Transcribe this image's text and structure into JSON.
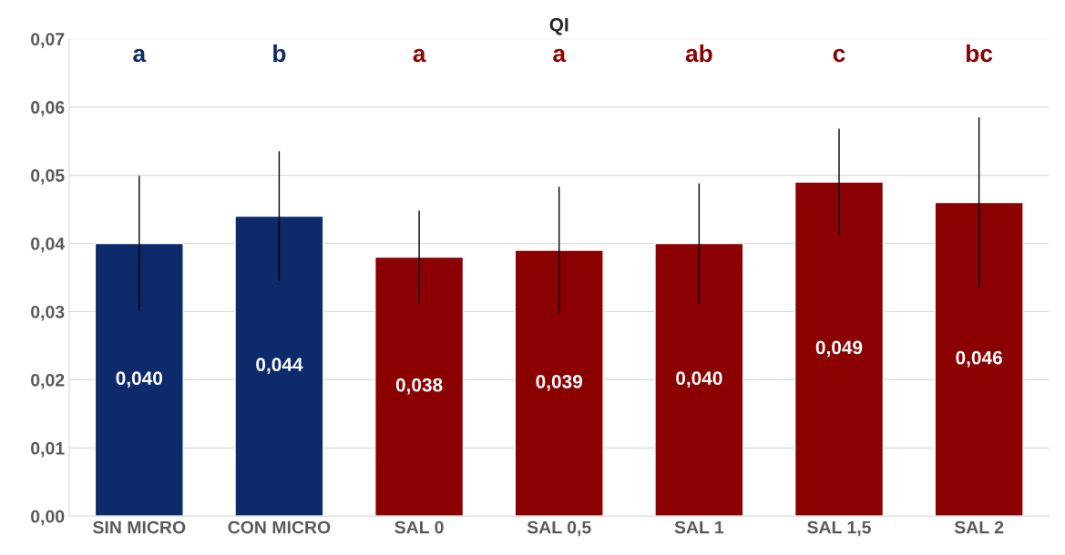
{
  "chart_data": {
    "type": "bar",
    "title": "QI",
    "categories": [
      "SIN MICRO",
      "CON MICRO",
      "SAL 0",
      "SAL 0,5",
      "SAL 1",
      "SAL 1,5",
      "SAL 2"
    ],
    "values": [
      0.04,
      0.044,
      0.038,
      0.039,
      0.04,
      0.049,
      0.046
    ],
    "errors": [
      0.0099,
      0.0095,
      0.0068,
      0.0093,
      0.0088,
      0.0078,
      0.0125
    ],
    "colors": [
      "#0d2a6b",
      "#0d2a6b",
      "#8b0000",
      "#8b0000",
      "#8b0000",
      "#8b0000",
      "#8b0000"
    ],
    "value_labels": [
      "0,040",
      "0,044",
      "0,038",
      "0,039",
      "0,040",
      "0,049",
      "0,046"
    ],
    "ylim": [
      0,
      0.07
    ],
    "yticks": [
      {
        "value": 0,
        "label": "0,00"
      },
      {
        "value": 0.01,
        "label": "0,01"
      },
      {
        "value": 0.02,
        "label": "0,02"
      },
      {
        "value": 0.03,
        "label": "0,03"
      },
      {
        "value": 0.04,
        "label": "0,04"
      },
      {
        "value": 0.05,
        "label": "0,05"
      },
      {
        "value": 0.06,
        "label": "0,06"
      },
      {
        "value": 0.07,
        "label": "0,07"
      }
    ],
    "grid": "y",
    "annotations": [
      "a",
      "b",
      "a",
      "a",
      "ab",
      "c",
      "bc"
    ]
  }
}
